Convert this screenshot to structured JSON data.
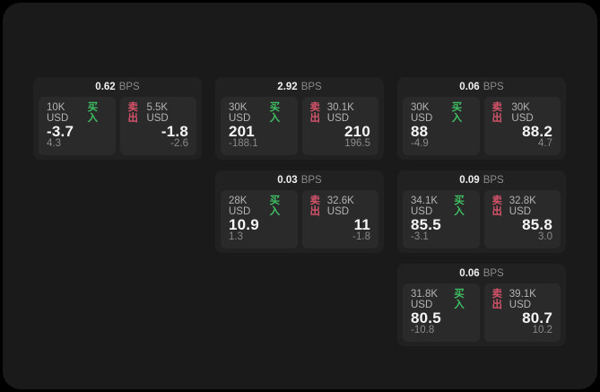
{
  "labels": {
    "bps_unit": "BPS",
    "buy": "买入",
    "sell": "卖出"
  },
  "colors": {
    "screen_bg": "#1a1a1a",
    "card_bg": "#212121",
    "panel_bg": "#2a2a2a",
    "buy_accent": "#3fbf63",
    "sell_accent": "#d4536a"
  },
  "cards": [
    {
      "bps": "0.62",
      "buy": {
        "notional": "10K USD",
        "price": "-3.7",
        "secondary": "4.3"
      },
      "sell": {
        "notional": "5.5K USD",
        "price": "-1.8",
        "secondary": "-2.6"
      }
    },
    {
      "bps": "2.92",
      "buy": {
        "notional": "30K USD",
        "price": "201",
        "secondary": "-188.1"
      },
      "sell": {
        "notional": "30.1K USD",
        "price": "210",
        "secondary": "196.5"
      }
    },
    {
      "bps": "0.06",
      "buy": {
        "notional": "30K USD",
        "price": "88",
        "secondary": "-4.9"
      },
      "sell": {
        "notional": "30K USD",
        "price": "88.2",
        "secondary": "4.7"
      }
    },
    {
      "bps": "0.03",
      "buy": {
        "notional": "28K USD",
        "price": "10.9",
        "secondary": "1.3"
      },
      "sell": {
        "notional": "32.6K USD",
        "price": "11",
        "secondary": "-1.8"
      }
    },
    {
      "bps": "0.09",
      "buy": {
        "notional": "34.1K USD",
        "price": "85.5",
        "secondary": "-3.1"
      },
      "sell": {
        "notional": "32.8K USD",
        "price": "85.8",
        "secondary": "3.0"
      }
    },
    {
      "bps": "0.06",
      "buy": {
        "notional": "31.8K USD",
        "price": "80.5",
        "secondary": "-10.8"
      },
      "sell": {
        "notional": "39.1K USD",
        "price": "80.7",
        "secondary": "10.2"
      }
    }
  ]
}
